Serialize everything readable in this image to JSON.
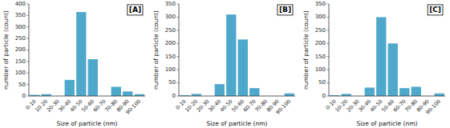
{
  "chart_data": [
    {
      "type": "bar",
      "title": "[A]",
      "categories": [
        "0-10",
        "10-20",
        "20-30",
        "30-40",
        "40-50",
        "50-60",
        "60-70",
        "70-80",
        "80-90",
        "90-100"
      ],
      "values": [
        5,
        8,
        0,
        70,
        365,
        160,
        0,
        40,
        20,
        8
      ],
      "color": "#4EA8CB",
      "xlabel": "Size of particle (nm)",
      "ylabel": "number of particle (count)",
      "ylim": [
        0,
        400
      ],
      "yticks": [
        0,
        50,
        100,
        150,
        200,
        250,
        300,
        350,
        400
      ]
    },
    {
      "type": "bar",
      "title": "[B]",
      "categories": [
        "0-10",
        "10-20",
        "20-30",
        "30-40",
        "40-50",
        "50-60",
        "60-70",
        "70-80",
        "80-90",
        "90-100"
      ],
      "values": [
        3,
        8,
        0,
        45,
        310,
        215,
        30,
        0,
        0,
        10
      ],
      "color": "#4EA8CB",
      "xlabel": "Size of particle (nm)",
      "ylabel": "number of particle (count)",
      "ylim": [
        0,
        350
      ],
      "yticks": [
        0,
        50,
        100,
        150,
        200,
        250,
        300,
        350
      ]
    },
    {
      "type": "bar",
      "title": "[C]",
      "categories": [
        "0-10",
        "10-20",
        "20-30",
        "30-40",
        "40-50",
        "50-60",
        "60-70",
        "70-80",
        "80-90",
        "90-100"
      ],
      "values": [
        3,
        8,
        0,
        32,
        300,
        200,
        30,
        35,
        0,
        10
      ],
      "color": "#4EA8CB",
      "xlabel": "Size of particle (nm)",
      "ylabel": "number of particle (count)",
      "ylim": [
        0,
        350
      ],
      "yticks": [
        0,
        50,
        100,
        150,
        200,
        250,
        300,
        350
      ]
    }
  ]
}
